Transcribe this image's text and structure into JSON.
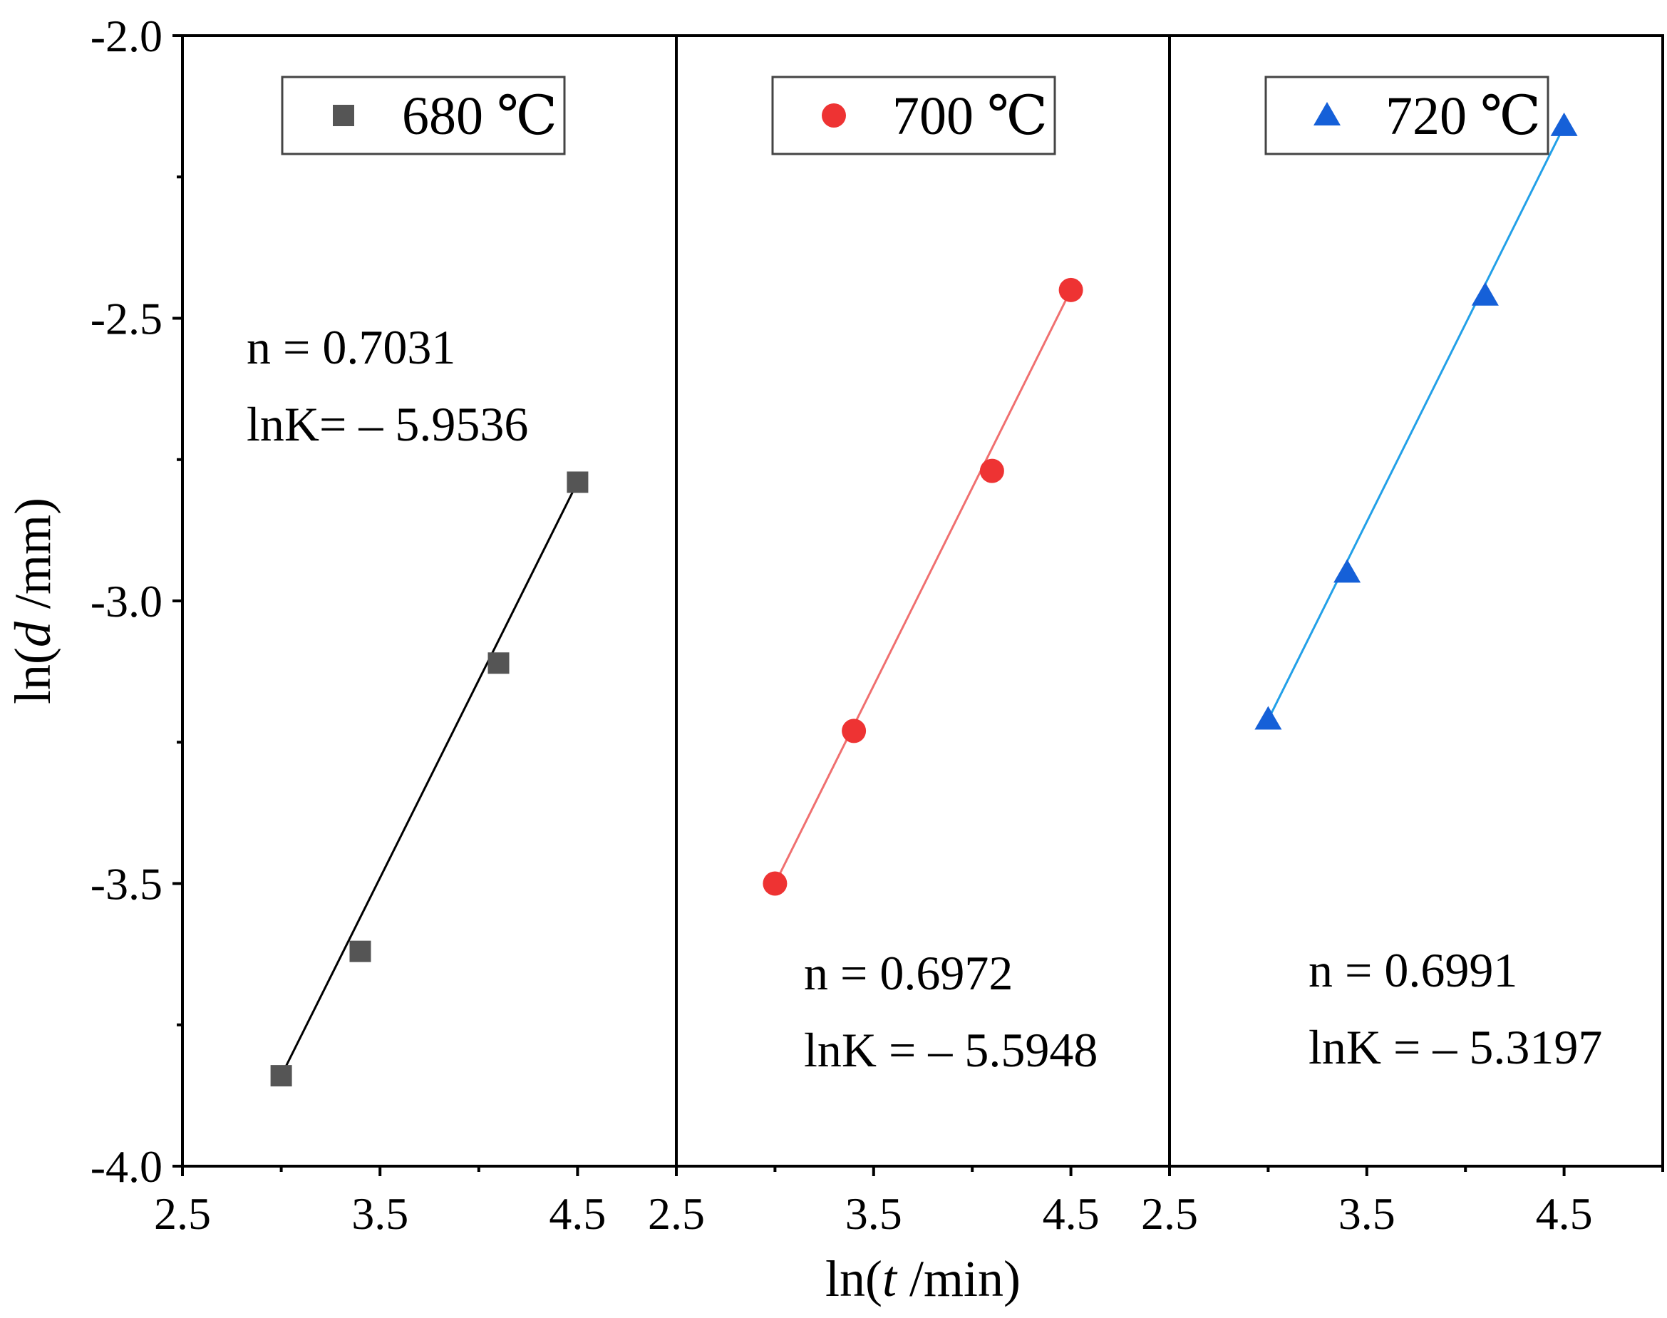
{
  "chart_data": {
    "type": "scatter",
    "layout": "three side-by-side panels sharing a y axis",
    "ylabel": "ln(d /mm)",
    "ylabel_parts": [
      "ln(",
      "d",
      " /mm)"
    ],
    "xlabel": "ln(t /min)",
    "xlabel_parts": [
      "ln(",
      "t",
      " /min)"
    ],
    "ylim": [
      -4.0,
      -2.0
    ],
    "y_ticks": [
      -4.0,
      -3.5,
      -3.0,
      -2.5,
      -2.0
    ],
    "y_tick_labels": [
      "-4.0",
      "-3.5",
      "-3.0",
      "-2.5",
      "-2.0"
    ],
    "xlim": [
      2.5,
      5.0
    ],
    "x_ticks": [
      2.5,
      3.5,
      4.5
    ],
    "x_tick_labels": [
      "2.5",
      "3.5",
      "4.5"
    ],
    "grid": false,
    "panels": [
      {
        "series_name": "680 ℃",
        "marker": "square",
        "color": "#555555",
        "line_color": "#000000",
        "legend_placement": "top-center",
        "x": [
          3.0,
          3.4,
          4.1,
          4.5
        ],
        "y": [
          -3.84,
          -3.62,
          -3.11,
          -2.79
        ],
        "fit": {
          "x": [
            3.0,
            4.5
          ],
          "y": [
            -3.84,
            -2.79
          ]
        },
        "annotations": [
          "n = 0.7031",
          "lnK= – 5.9536"
        ],
        "annotation_placement": "upper-left"
      },
      {
        "series_name": "700 ℃",
        "marker": "circle",
        "color": "#ee3333",
        "line_color": "#f07070",
        "legend_placement": "top-center",
        "x": [
          3.0,
          3.4,
          4.1,
          4.5
        ],
        "y": [
          -3.5,
          -3.23,
          -2.77,
          -2.45
        ],
        "fit": {
          "x": [
            3.0,
            4.5
          ],
          "y": [
            -3.5,
            -2.45
          ]
        },
        "annotations": [
          "n = 0.6972",
          "lnK = – 5.5948"
        ],
        "annotation_placement": "lower-center"
      },
      {
        "series_name": "720 ℃",
        "marker": "triangle",
        "color": "#1560d8",
        "line_color": "#22a0e8",
        "legend_placement": "top-center",
        "x": [
          3.0,
          3.4,
          4.1,
          4.5
        ],
        "y": [
          -3.21,
          -2.95,
          -2.46,
          -2.16
        ],
        "fit": {
          "x": [
            3.0,
            4.5
          ],
          "y": [
            -3.21,
            -2.16
          ]
        },
        "annotations": [
          "n = 0.6991",
          "lnK = – 5.3197"
        ],
        "annotation_placement": "lower-right"
      }
    ]
  }
}
